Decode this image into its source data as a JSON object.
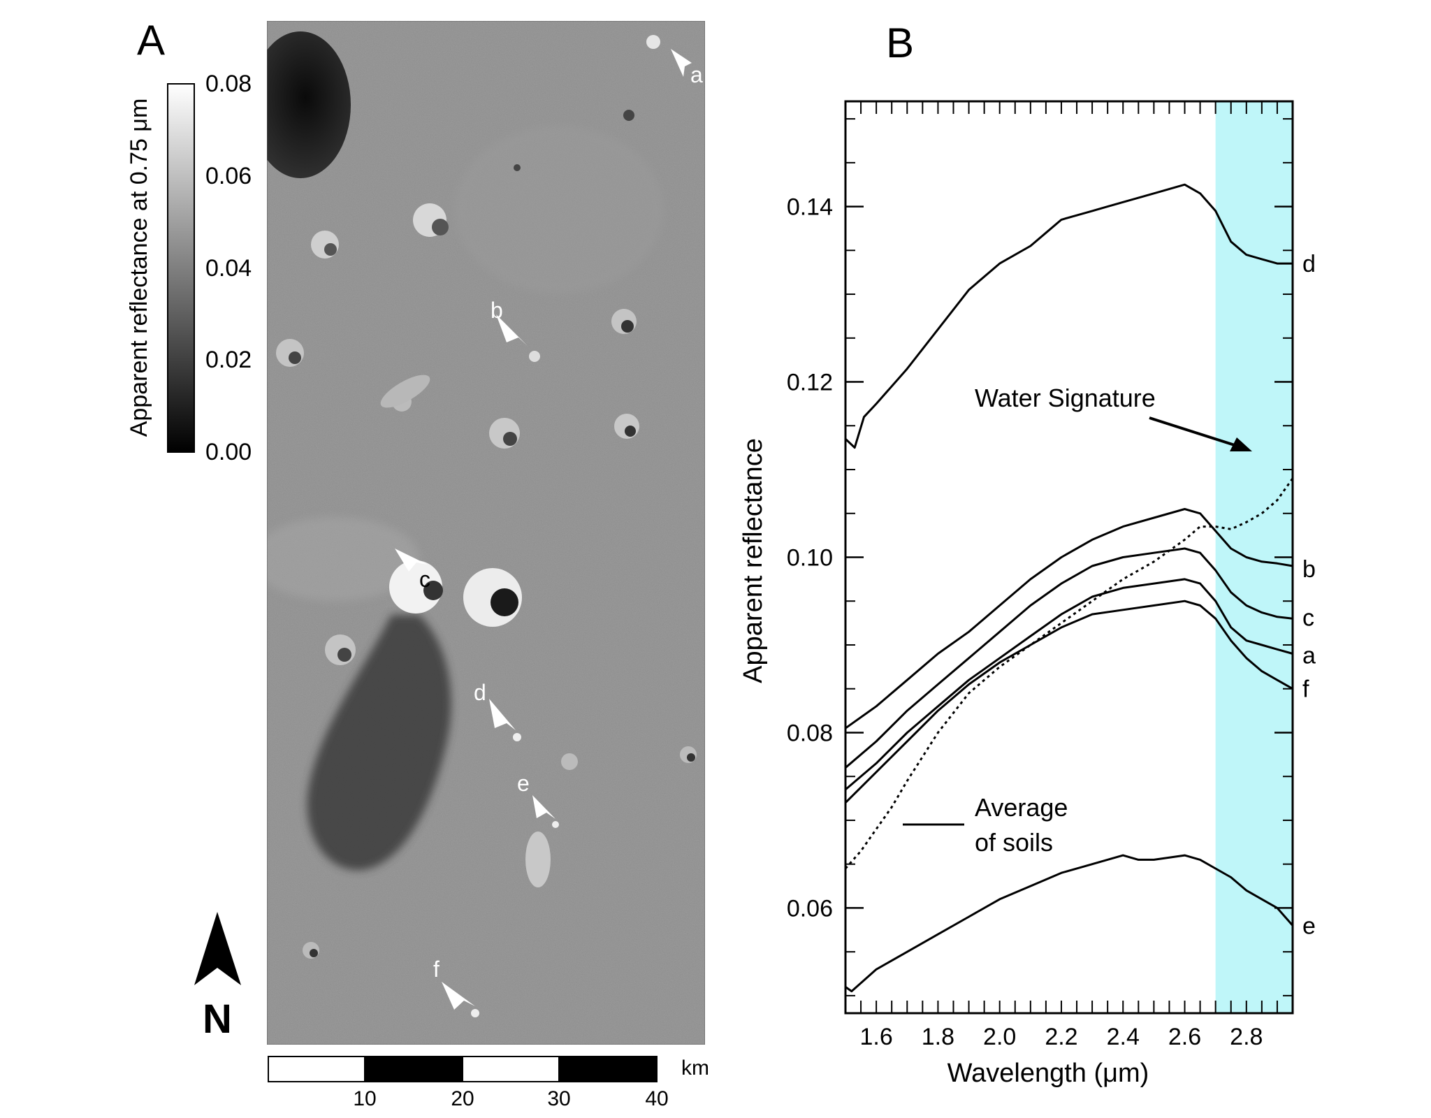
{
  "panel_a": {
    "label": "A",
    "colorbar": {
      "title": "Apparent reflectance at 0.75 μm",
      "ticks": [
        "0.08",
        "0.06",
        "0.04",
        "0.02",
        "0.00"
      ]
    },
    "scalebar": {
      "unit": "km",
      "ticks": [
        "10",
        "20",
        "30",
        "40"
      ]
    },
    "north_label": "N",
    "markers": [
      "a",
      "b",
      "c",
      "d",
      "e",
      "f"
    ]
  },
  "panel_b": {
    "label": "B",
    "annotation_water": "Water Signature",
    "annotation_soils_line1": "Average",
    "annotation_soils_line2": "of soils",
    "water_band_color": "#bff6f9",
    "chart_data": {
      "type": "line",
      "xlabel": "Wavelength (μm)",
      "ylabel": "Apparent reflectance",
      "xlim": [
        1.5,
        2.95
      ],
      "ylim": [
        0.048,
        0.152
      ],
      "x_ticks": [
        "1.6",
        "1.8",
        "2.0",
        "2.2",
        "2.4",
        "2.6",
        "2.8"
      ],
      "y_ticks": [
        "0.06",
        "0.08",
        "0.10",
        "0.12",
        "0.14"
      ],
      "highlight_band": [
        2.7,
        2.95
      ],
      "series": [
        {
          "name": "d",
          "style": "solid",
          "x": [
            1.5,
            1.53,
            1.56,
            1.6,
            1.7,
            1.8,
            1.9,
            2.0,
            2.1,
            2.15,
            2.2,
            2.3,
            2.35,
            2.4,
            2.5,
            2.6,
            2.65,
            2.7,
            2.75,
            2.8,
            2.85,
            2.9,
            2.95
          ],
          "y": [
            0.1135,
            0.1125,
            0.116,
            0.1175,
            0.1215,
            0.126,
            0.1305,
            0.1335,
            0.1355,
            0.137,
            0.1385,
            0.1395,
            0.14,
            0.1405,
            0.1415,
            0.1425,
            0.1415,
            0.1395,
            0.136,
            0.1345,
            0.134,
            0.1335,
            0.1335
          ]
        },
        {
          "name": "b",
          "style": "solid",
          "x": [
            1.5,
            1.6,
            1.7,
            1.8,
            1.9,
            2.0,
            2.1,
            2.2,
            2.3,
            2.4,
            2.5,
            2.6,
            2.65,
            2.7,
            2.75,
            2.8,
            2.85,
            2.9,
            2.95
          ],
          "y": [
            0.0805,
            0.083,
            0.086,
            0.089,
            0.0915,
            0.0945,
            0.0975,
            0.1,
            0.102,
            0.1035,
            0.1045,
            0.1055,
            0.105,
            0.103,
            0.101,
            0.1,
            0.0995,
            0.0993,
            0.099
          ]
        },
        {
          "name": "c",
          "style": "solid",
          "x": [
            1.5,
            1.6,
            1.7,
            1.8,
            1.9,
            2.0,
            2.1,
            2.2,
            2.3,
            2.4,
            2.5,
            2.6,
            2.65,
            2.7,
            2.75,
            2.8,
            2.85,
            2.9,
            2.95
          ],
          "y": [
            0.076,
            0.079,
            0.0825,
            0.0855,
            0.0885,
            0.0915,
            0.0945,
            0.097,
            0.099,
            0.1,
            0.1005,
            0.101,
            0.1005,
            0.0985,
            0.096,
            0.0945,
            0.0937,
            0.0932,
            0.093
          ]
        },
        {
          "name": "a",
          "style": "solid",
          "x": [
            1.5,
            1.6,
            1.7,
            1.8,
            1.9,
            2.0,
            2.1,
            2.2,
            2.3,
            2.4,
            2.5,
            2.6,
            2.65,
            2.7,
            2.75,
            2.8,
            2.85,
            2.9,
            2.95
          ],
          "y": [
            0.0735,
            0.0765,
            0.08,
            0.083,
            0.086,
            0.0885,
            0.091,
            0.0935,
            0.0955,
            0.0965,
            0.097,
            0.0975,
            0.097,
            0.095,
            0.092,
            0.0905,
            0.09,
            0.0895,
            0.089
          ]
        },
        {
          "name": "f",
          "style": "solid",
          "x": [
            1.5,
            1.6,
            1.7,
            1.8,
            1.9,
            2.0,
            2.1,
            2.2,
            2.3,
            2.4,
            2.5,
            2.6,
            2.65,
            2.7,
            2.75,
            2.8,
            2.85,
            2.9,
            2.95
          ],
          "y": [
            0.072,
            0.0755,
            0.079,
            0.0825,
            0.0855,
            0.088,
            0.09,
            0.092,
            0.0935,
            0.094,
            0.0945,
            0.095,
            0.0945,
            0.093,
            0.0905,
            0.0885,
            0.087,
            0.086,
            0.085
          ]
        },
        {
          "name": "Average of soils",
          "style": "dotted",
          "x": [
            1.5,
            1.55,
            1.6,
            1.65,
            1.7,
            1.8,
            1.9,
            2.0,
            2.1,
            2.2,
            2.3,
            2.4,
            2.5,
            2.6,
            2.65,
            2.7,
            2.75,
            2.8,
            2.85,
            2.9,
            2.95
          ],
          "y": [
            0.0645,
            0.0665,
            0.069,
            0.0715,
            0.0745,
            0.08,
            0.0845,
            0.0875,
            0.09,
            0.0925,
            0.095,
            0.0975,
            0.0995,
            0.102,
            0.1035,
            0.1035,
            0.1032,
            0.104,
            0.105,
            0.1065,
            0.109
          ]
        },
        {
          "name": "e",
          "style": "solid",
          "x": [
            1.5,
            1.52,
            1.6,
            1.7,
            1.8,
            1.9,
            2.0,
            2.1,
            2.2,
            2.3,
            2.4,
            2.45,
            2.5,
            2.6,
            2.65,
            2.7,
            2.75,
            2.8,
            2.85,
            2.9,
            2.95
          ],
          "y": [
            0.051,
            0.0505,
            0.053,
            0.055,
            0.057,
            0.059,
            0.061,
            0.0625,
            0.064,
            0.065,
            0.066,
            0.0655,
            0.0655,
            0.066,
            0.0655,
            0.0645,
            0.0635,
            0.062,
            0.061,
            0.06,
            0.058
          ]
        }
      ]
    }
  }
}
